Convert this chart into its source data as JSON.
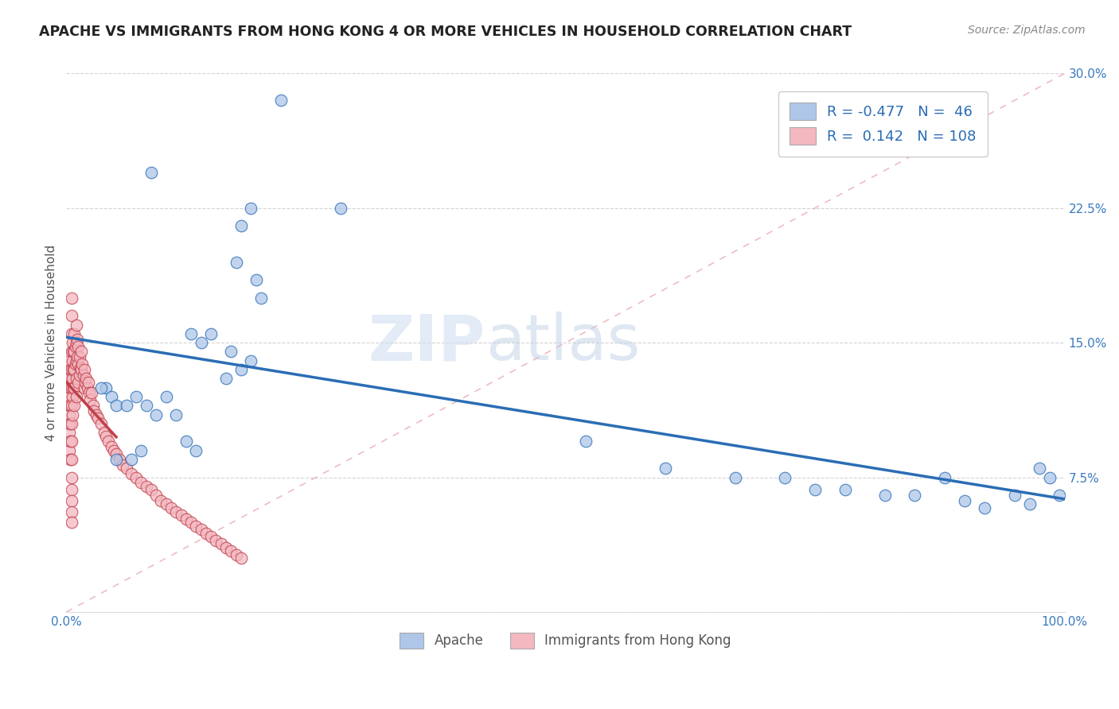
{
  "title": "APACHE VS IMMIGRANTS FROM HONG KONG 4 OR MORE VEHICLES IN HOUSEHOLD CORRELATION CHART",
  "source": "Source: ZipAtlas.com",
  "ylabel": "4 or more Vehicles in Household",
  "xlim": [
    0.0,
    1.0
  ],
  "ylim": [
    0.0,
    0.3
  ],
  "xticks": [
    0.0,
    0.25,
    0.5,
    0.75,
    1.0
  ],
  "xticklabels": [
    "0.0%",
    "",
    "",
    "",
    "100.0%"
  ],
  "yticks": [
    0.0,
    0.075,
    0.15,
    0.225,
    0.3
  ],
  "yticklabels": [
    "",
    "7.5%",
    "15.0%",
    "22.5%",
    "30.0%"
  ],
  "apache_R": -0.477,
  "apache_N": 46,
  "hk_R": 0.142,
  "hk_N": 108,
  "legend_label_apache": "Apache",
  "legend_label_hk": "Immigrants from Hong Kong",
  "apache_color": "#aec6e8",
  "hk_color": "#f4b8c1",
  "apache_line_color": "#2a6db5",
  "hk_line_color": "#c0404a",
  "watermark_zip": "ZIP",
  "watermark_atlas": "atlas",
  "background_color": "#ffffff",
  "grid_color": "#c8c8c8",
  "apache_x": [
    0.215,
    0.085,
    0.175,
    0.185,
    0.275,
    0.17,
    0.19,
    0.195,
    0.145,
    0.125,
    0.135,
    0.165,
    0.185,
    0.175,
    0.16,
    0.04,
    0.035,
    0.045,
    0.05,
    0.06,
    0.07,
    0.08,
    0.09,
    0.1,
    0.11,
    0.12,
    0.13,
    0.05,
    0.065,
    0.075,
    0.52,
    0.6,
    0.67,
    0.72,
    0.75,
    0.78,
    0.82,
    0.85,
    0.88,
    0.9,
    0.92,
    0.95,
    0.965,
    0.975,
    0.985,
    0.995
  ],
  "apache_y": [
    0.285,
    0.245,
    0.215,
    0.225,
    0.225,
    0.195,
    0.185,
    0.175,
    0.155,
    0.155,
    0.15,
    0.145,
    0.14,
    0.135,
    0.13,
    0.125,
    0.125,
    0.12,
    0.115,
    0.115,
    0.12,
    0.115,
    0.11,
    0.12,
    0.11,
    0.095,
    0.09,
    0.085,
    0.085,
    0.09,
    0.095,
    0.08,
    0.075,
    0.075,
    0.068,
    0.068,
    0.065,
    0.065,
    0.075,
    0.062,
    0.058,
    0.065,
    0.06,
    0.08,
    0.075,
    0.065
  ],
  "hk_x": [
    0.002,
    0.002,
    0.002,
    0.003,
    0.003,
    0.003,
    0.003,
    0.003,
    0.003,
    0.004,
    0.004,
    0.004,
    0.004,
    0.004,
    0.004,
    0.005,
    0.005,
    0.005,
    0.005,
    0.005,
    0.005,
    0.005,
    0.005,
    0.005,
    0.005,
    0.005,
    0.005,
    0.005,
    0.005,
    0.005,
    0.006,
    0.006,
    0.006,
    0.006,
    0.006,
    0.007,
    0.007,
    0.007,
    0.008,
    0.008,
    0.008,
    0.008,
    0.008,
    0.009,
    0.009,
    0.01,
    0.01,
    0.01,
    0.01,
    0.01,
    0.011,
    0.011,
    0.012,
    0.012,
    0.012,
    0.013,
    0.013,
    0.014,
    0.015,
    0.015,
    0.016,
    0.017,
    0.018,
    0.018,
    0.019,
    0.02,
    0.021,
    0.022,
    0.023,
    0.024,
    0.025,
    0.027,
    0.028,
    0.03,
    0.032,
    0.035,
    0.038,
    0.04,
    0.042,
    0.045,
    0.048,
    0.05,
    0.053,
    0.056,
    0.06,
    0.065,
    0.07,
    0.075,
    0.08,
    0.085,
    0.09,
    0.095,
    0.1,
    0.105,
    0.11,
    0.115,
    0.12,
    0.125,
    0.13,
    0.135,
    0.14,
    0.145,
    0.15,
    0.155,
    0.16,
    0.165,
    0.17,
    0.175
  ],
  "hk_y": [
    0.13,
    0.115,
    0.105,
    0.14,
    0.13,
    0.12,
    0.11,
    0.1,
    0.09,
    0.135,
    0.125,
    0.115,
    0.105,
    0.095,
    0.085,
    0.175,
    0.165,
    0.155,
    0.145,
    0.135,
    0.125,
    0.115,
    0.105,
    0.095,
    0.085,
    0.075,
    0.068,
    0.062,
    0.056,
    0.05,
    0.15,
    0.14,
    0.13,
    0.12,
    0.11,
    0.145,
    0.135,
    0.125,
    0.155,
    0.145,
    0.135,
    0.125,
    0.115,
    0.148,
    0.138,
    0.16,
    0.15,
    0.14,
    0.13,
    0.12,
    0.152,
    0.142,
    0.148,
    0.138,
    0.128,
    0.142,
    0.132,
    0.136,
    0.145,
    0.135,
    0.138,
    0.132,
    0.135,
    0.125,
    0.128,
    0.13,
    0.125,
    0.128,
    0.122,
    0.118,
    0.122,
    0.115,
    0.112,
    0.11,
    0.108,
    0.105,
    0.1,
    0.098,
    0.095,
    0.092,
    0.09,
    0.088,
    0.085,
    0.082,
    0.08,
    0.077,
    0.075,
    0.072,
    0.07,
    0.068,
    0.065,
    0.062,
    0.06,
    0.058,
    0.056,
    0.054,
    0.052,
    0.05,
    0.048,
    0.046,
    0.044,
    0.042,
    0.04,
    0.038,
    0.036,
    0.034,
    0.032,
    0.03
  ]
}
